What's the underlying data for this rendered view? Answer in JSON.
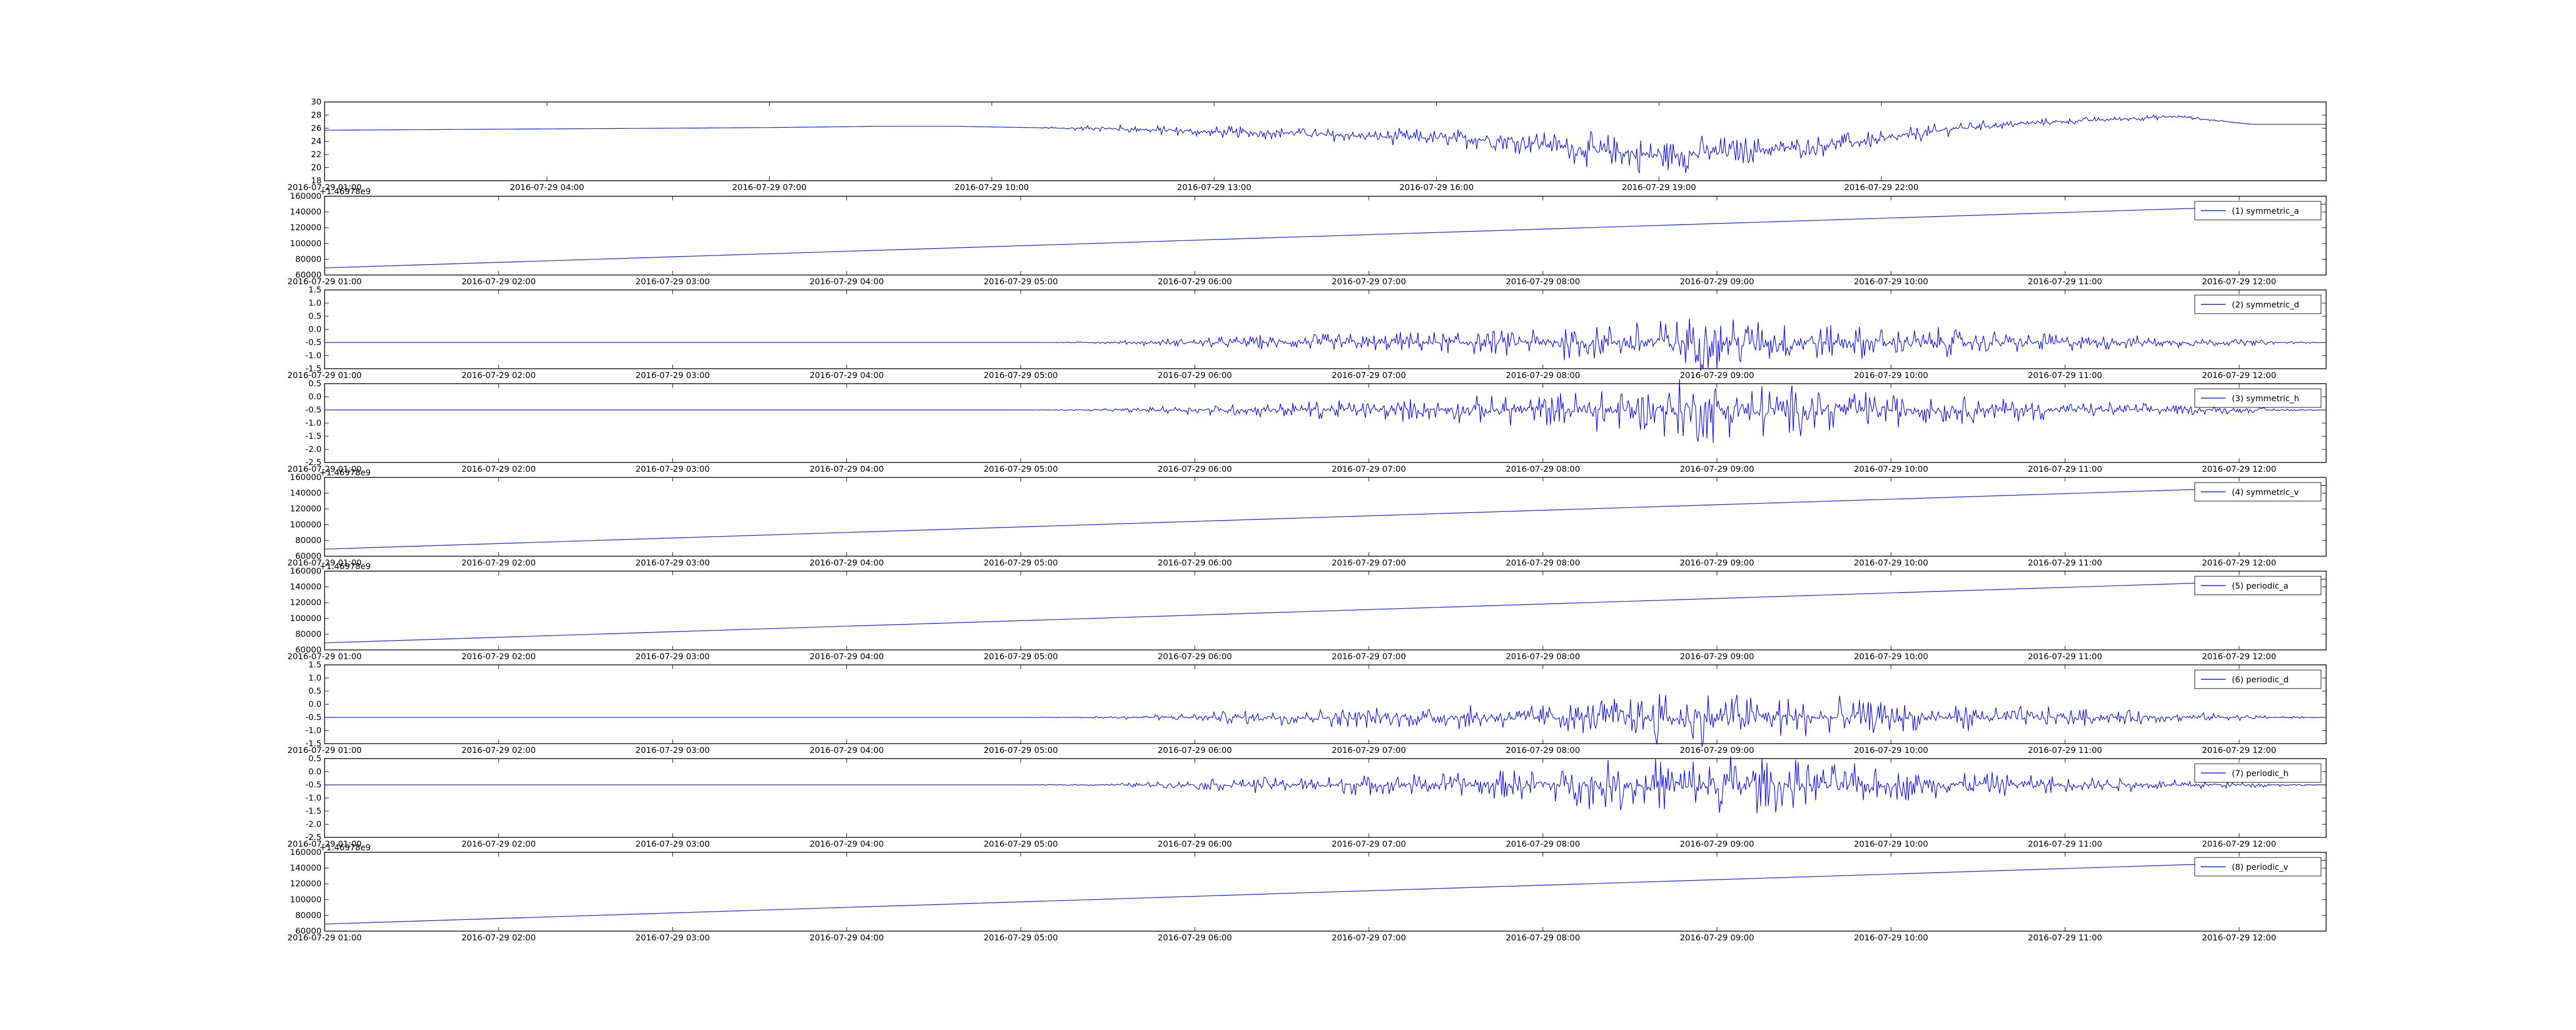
{
  "figure": {
    "background": "#ffffff",
    "line_color": "#0000ff"
  },
  "chart_data": [
    {
      "type": "line",
      "legend": "",
      "legend_position": "",
      "offset_text": "",
      "ylim": [
        18,
        30
      ],
      "yticks": [
        18,
        20,
        22,
        24,
        26,
        28,
        30
      ],
      "ytick_labels": [
        "18",
        "20",
        "22",
        "24",
        "26",
        "28",
        "30"
      ],
      "xtick_labels": [
        "2016-07-29 01:00",
        "2016-07-29 04:00",
        "2016-07-29 07:00",
        "2016-07-29 10:00",
        "2016-07-29 13:00",
        "2016-07-29 16:00",
        "2016-07-29 19:00",
        "2016-07-29 22:00"
      ],
      "x_hours": [
        0,
        1.5,
        3,
        4.5,
        6,
        7.5,
        8.5,
        9,
        9.5,
        10,
        10.5,
        11,
        12,
        13,
        14,
        15,
        16,
        17,
        18,
        19,
        20,
        21,
        22,
        23,
        24,
        25,
        26,
        27
      ],
      "y": [
        25.7,
        25.8,
        25.9,
        26.0,
        26.1,
        26.3,
        26.3,
        26.2,
        26.1,
        26.0,
        26.0,
        25.8,
        25.4,
        25.3,
        24.8,
        24.5,
        24.2,
        22.8,
        21.8,
        22.5,
        23.2,
        24.3,
        26.0,
        26.8,
        27.3,
        27.8,
        26.6,
        26.6
      ],
      "noise": [
        0,
        0,
        0,
        0,
        0,
        0,
        0,
        0,
        0,
        0.2,
        0.3,
        0.5,
        0.6,
        0.6,
        0.7,
        0.9,
        1.1,
        1.6,
        2.0,
        1.5,
        1.1,
        0.9,
        0.6,
        0.4,
        0.3,
        0.2,
        0,
        0
      ]
    },
    {
      "type": "line",
      "legend": "(1) symmetric_a",
      "legend_position": "upper-right",
      "offset_text": "+1.46978e9",
      "ylim": [
        60000,
        160000
      ],
      "yticks": [
        60000,
        80000,
        100000,
        120000,
        140000,
        160000
      ],
      "ytick_labels": [
        "60000",
        "80000",
        "100000",
        "120000",
        "140000",
        "160000"
      ],
      "xtick_labels": [
        "2016-07-29 01:00",
        "2016-07-29 02:00",
        "2016-07-29 03:00",
        "2016-07-29 04:00",
        "2016-07-29 05:00",
        "2016-07-29 06:00",
        "2016-07-29 07:00",
        "2016-07-29 08:00",
        "2016-07-29 09:00",
        "2016-07-29 10:00",
        "2016-07-29 11:00",
        "2016-07-29 12:00"
      ],
      "x_hours": [
        0,
        11.5
      ],
      "y": [
        69000,
        150000
      ],
      "noise": [
        0,
        0
      ]
    },
    {
      "type": "line",
      "legend": "(2) symmetric_d",
      "legend_position": "upper-right",
      "offset_text": "",
      "ylim": [
        -1.5,
        1.5
      ],
      "yticks": [
        -1.5,
        -1.0,
        -0.5,
        0.0,
        0.5,
        1.0,
        1.5
      ],
      "ytick_labels": [
        "-1.5",
        "-1.0",
        "-0.5",
        "0.0",
        "0.5",
        "1.0",
        "1.5"
      ],
      "xtick_labels": [
        "2016-07-29 01:00",
        "2016-07-29 02:00",
        "2016-07-29 03:00",
        "2016-07-29 04:00",
        "2016-07-29 05:00",
        "2016-07-29 06:00",
        "2016-07-29 07:00",
        "2016-07-29 08:00",
        "2016-07-29 09:00",
        "2016-07-29 10:00",
        "2016-07-29 11:00",
        "2016-07-29 12:00"
      ],
      "x_hours": [
        0,
        4.0,
        4.5,
        5.0,
        5.5,
        6.0,
        6.5,
        7.0,
        7.5,
        8.0,
        8.5,
        9.0,
        9.5,
        10.0,
        10.5,
        11.0,
        11.5
      ],
      "y": [
        -0.5,
        -0.5,
        -0.5,
        -0.5,
        -0.5,
        -0.5,
        -0.5,
        -0.5,
        -0.5,
        -0.5,
        -0.5,
        -0.5,
        -0.5,
        -0.5,
        -0.5,
        -0.5,
        -0.5
      ],
      "noise": [
        0,
        0,
        0.03,
        0.12,
        0.2,
        0.25,
        0.28,
        0.35,
        0.55,
        0.75,
        0.5,
        0.38,
        0.3,
        0.22,
        0.15,
        0.08,
        0
      ]
    },
    {
      "type": "line",
      "legend": "(3) symmetric_h",
      "legend_position": "upper-right",
      "offset_text": "",
      "ylim": [
        -2.5,
        0.5
      ],
      "yticks": [
        -2.5,
        -2.0,
        -1.5,
        -1.0,
        -0.5,
        0.0,
        0.5
      ],
      "ytick_labels": [
        "-2.5",
        "-2.0",
        "-1.5",
        "-1.0",
        "-0.5",
        "0.0",
        "0.5"
      ],
      "xtick_labels": [
        "2016-07-29 01:00",
        "2016-07-29 02:00",
        "2016-07-29 03:00",
        "2016-07-29 04:00",
        "2016-07-29 05:00",
        "2016-07-29 06:00",
        "2016-07-29 07:00",
        "2016-07-29 08:00",
        "2016-07-29 09:00",
        "2016-07-29 10:00",
        "2016-07-29 11:00",
        "2016-07-29 12:00"
      ],
      "x_hours": [
        0,
        4.0,
        4.5,
        5.0,
        5.5,
        6.0,
        6.5,
        7.0,
        7.5,
        8.0,
        8.5,
        9.0,
        9.5,
        10.0,
        10.5,
        11.0,
        11.5
      ],
      "y": [
        -0.5,
        -0.5,
        -0.5,
        -0.5,
        -0.5,
        -0.5,
        -0.5,
        -0.5,
        -0.5,
        -0.5,
        -0.5,
        -0.5,
        -0.5,
        -0.5,
        -0.5,
        -0.5,
        -0.5
      ],
      "noise": [
        0,
        0,
        0.03,
        0.12,
        0.2,
        0.25,
        0.3,
        0.4,
        0.6,
        0.85,
        0.55,
        0.4,
        0.3,
        0.22,
        0.15,
        0.08,
        0
      ]
    },
    {
      "type": "line",
      "legend": "(4) symmetric_v",
      "legend_position": "upper-right",
      "offset_text": "+1.46978e9",
      "ylim": [
        60000,
        160000
      ],
      "yticks": [
        60000,
        80000,
        100000,
        120000,
        140000,
        160000
      ],
      "ytick_labels": [
        "60000",
        "80000",
        "100000",
        "120000",
        "140000",
        "160000"
      ],
      "xtick_labels": [
        "2016-07-29 01:00",
        "2016-07-29 02:00",
        "2016-07-29 03:00",
        "2016-07-29 04:00",
        "2016-07-29 05:00",
        "2016-07-29 06:00",
        "2016-07-29 07:00",
        "2016-07-29 08:00",
        "2016-07-29 09:00",
        "2016-07-29 10:00",
        "2016-07-29 11:00",
        "2016-07-29 12:00"
      ],
      "x_hours": [
        0,
        11.5
      ],
      "y": [
        69000,
        150000
      ],
      "noise": [
        0,
        0
      ]
    },
    {
      "type": "line",
      "legend": "(5) periodic_a",
      "legend_position": "upper-right",
      "offset_text": "+1.46978e9",
      "ylim": [
        60000,
        160000
      ],
      "yticks": [
        60000,
        80000,
        100000,
        120000,
        140000,
        160000
      ],
      "ytick_labels": [
        "60000",
        "80000",
        "100000",
        "120000",
        "140000",
        "160000"
      ],
      "xtick_labels": [
        "2016-07-29 01:00",
        "2016-07-29 02:00",
        "2016-07-29 03:00",
        "2016-07-29 04:00",
        "2016-07-29 05:00",
        "2016-07-29 06:00",
        "2016-07-29 07:00",
        "2016-07-29 08:00",
        "2016-07-29 09:00",
        "2016-07-29 10:00",
        "2016-07-29 11:00",
        "2016-07-29 12:00"
      ],
      "x_hours": [
        0,
        11.5
      ],
      "y": [
        69000,
        150000
      ],
      "noise": [
        0,
        0
      ]
    },
    {
      "type": "line",
      "legend": "(6) periodic_d",
      "legend_position": "upper-right",
      "offset_text": "",
      "ylim": [
        -1.5,
        1.5
      ],
      "yticks": [
        -1.5,
        -1.0,
        -0.5,
        0.0,
        0.5,
        1.0,
        1.5
      ],
      "ytick_labels": [
        "-1.5",
        "-1.0",
        "-0.5",
        "0.0",
        "0.5",
        "1.0",
        "1.5"
      ],
      "xtick_labels": [
        "2016-07-29 01:00",
        "2016-07-29 02:00",
        "2016-07-29 03:00",
        "2016-07-29 04:00",
        "2016-07-29 05:00",
        "2016-07-29 06:00",
        "2016-07-29 07:00",
        "2016-07-29 08:00",
        "2016-07-29 09:00",
        "2016-07-29 10:00",
        "2016-07-29 11:00",
        "2016-07-29 12:00"
      ],
      "x_hours": [
        0,
        4.0,
        4.5,
        5.0,
        5.5,
        6.0,
        6.5,
        7.0,
        7.5,
        8.0,
        8.5,
        9.0,
        9.5,
        10.0,
        10.5,
        11.0,
        11.5
      ],
      "y": [
        -0.5,
        -0.5,
        -0.5,
        -0.5,
        -0.5,
        -0.5,
        -0.5,
        -0.5,
        -0.5,
        -0.5,
        -0.5,
        -0.5,
        -0.5,
        -0.5,
        -0.5,
        -0.5,
        -0.5
      ],
      "noise": [
        0,
        0,
        0.03,
        0.12,
        0.2,
        0.25,
        0.28,
        0.35,
        0.55,
        0.75,
        0.5,
        0.38,
        0.3,
        0.22,
        0.15,
        0.08,
        0
      ]
    },
    {
      "type": "line",
      "legend": "(7) periodic_h",
      "legend_position": "upper-right",
      "offset_text": "",
      "ylim": [
        -2.5,
        0.5
      ],
      "yticks": [
        -2.5,
        -2.0,
        -1.5,
        -1.0,
        -0.5,
        0.0,
        0.5
      ],
      "ytick_labels": [
        "-2.5",
        "-2.0",
        "-1.5",
        "-1.0",
        "-0.5",
        "0.0",
        "0.5"
      ],
      "xtick_labels": [
        "2016-07-29 01:00",
        "2016-07-29 02:00",
        "2016-07-29 03:00",
        "2016-07-29 04:00",
        "2016-07-29 05:00",
        "2016-07-29 06:00",
        "2016-07-29 07:00",
        "2016-07-29 08:00",
        "2016-07-29 09:00",
        "2016-07-29 10:00",
        "2016-07-29 11:00",
        "2016-07-29 12:00"
      ],
      "x_hours": [
        0,
        4.0,
        4.5,
        5.0,
        5.5,
        6.0,
        6.5,
        7.0,
        7.5,
        8.0,
        8.5,
        9.0,
        9.5,
        10.0,
        10.5,
        11.0,
        11.5
      ],
      "y": [
        -0.5,
        -0.5,
        -0.5,
        -0.5,
        -0.5,
        -0.5,
        -0.5,
        -0.5,
        -0.5,
        -0.5,
        -0.5,
        -0.5,
        -0.5,
        -0.5,
        -0.5,
        -0.5,
        -0.5
      ],
      "noise": [
        0,
        0,
        0.03,
        0.12,
        0.2,
        0.25,
        0.3,
        0.4,
        0.6,
        0.85,
        0.55,
        0.4,
        0.3,
        0.22,
        0.15,
        0.08,
        0
      ]
    },
    {
      "type": "line",
      "legend": "(8) periodic_v",
      "legend_position": "upper-right",
      "offset_text": "+1.46978e9",
      "ylim": [
        60000,
        160000
      ],
      "yticks": [
        60000,
        80000,
        100000,
        120000,
        140000,
        160000
      ],
      "ytick_labels": [
        "60000",
        "80000",
        "100000",
        "120000",
        "140000",
        "160000"
      ],
      "xtick_labels": [
        "2016-07-29 01:00",
        "2016-07-29 02:00",
        "2016-07-29 03:00",
        "2016-07-29 04:00",
        "2016-07-29 05:00",
        "2016-07-29 06:00",
        "2016-07-29 07:00",
        "2016-07-29 08:00",
        "2016-07-29 09:00",
        "2016-07-29 10:00",
        "2016-07-29 11:00",
        "2016-07-29 12:00"
      ],
      "x_hours": [
        0,
        11.5
      ],
      "y": [
        69000,
        150000
      ],
      "noise": [
        0,
        0
      ]
    }
  ]
}
